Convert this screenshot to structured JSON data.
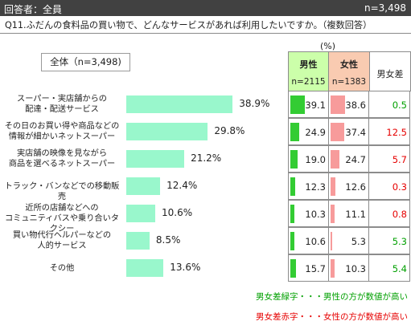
{
  "header": {
    "respondents_label": "回答者：全員",
    "n_total": "n=3,498"
  },
  "question": "Q11.ふだんの食料品の買い物で、どんなサービスがあれば利用したいですか。（複数回答）",
  "total_label": "全体（n=3,498)",
  "unit_label": "(%)",
  "columns": {
    "male": {
      "label": "男性",
      "n": "n=2115"
    },
    "female": {
      "label": "女性",
      "n": "n=1383"
    },
    "diff": {
      "label": "男女差"
    }
  },
  "legend": {
    "green": "男女差緑字・・・男性の方が数値が高い",
    "red": "男女差赤字・・・女性の方が数値が高い"
  },
  "colors": {
    "bar": "#99f7cc",
    "male_bar": "#33cc33",
    "female_bar": "#f79b9b",
    "diff_green": "#00a000",
    "diff_red": "#e60000"
  },
  "chart_data": {
    "type": "bar",
    "orientation": "horizontal",
    "categories": [
      [
        "スーパー・実店舗からの",
        "配達・配送サービス"
      ],
      [
        "その日のお買い得や商品などの",
        "情報が細かいネットスーパー"
      ],
      [
        "実店舗の映像を見ながら",
        "商品を選べるネットスーパー"
      ],
      [
        "トラック・バンなどでの移動販売"
      ],
      [
        "近所の店舗などへの",
        "コミュニティバスや乗り合いタクシー"
      ],
      [
        "買い物代行ヘルパーなどの",
        "人的サービス"
      ],
      [
        "その他"
      ]
    ],
    "total": {
      "values": [
        38.9,
        29.8,
        21.2,
        12.4,
        10.6,
        8.5,
        13.6
      ],
      "labels": [
        "38.9%",
        "29.8%",
        "21.2%",
        "12.4%",
        "10.6%",
        "8.5%",
        "13.6%"
      ]
    },
    "male": {
      "values": [
        39.1,
        24.9,
        19.0,
        12.3,
        10.3,
        10.6,
        15.7
      ],
      "labels": [
        "39.1",
        "24.9",
        "19.0",
        "12.3",
        "10.3",
        "10.6",
        "15.7"
      ]
    },
    "female": {
      "values": [
        38.6,
        37.4,
        24.7,
        12.6,
        11.1,
        5.3,
        10.3
      ],
      "labels": [
        "38.6",
        "37.4",
        "24.7",
        "12.6",
        "11.1",
        "5.3",
        "10.3"
      ]
    },
    "diff": {
      "labels": [
        "0.5",
        "12.5",
        "5.7",
        "0.3",
        "0.8",
        "5.3",
        "5.4"
      ],
      "colors": [
        "green",
        "red",
        "red",
        "red",
        "red",
        "green",
        "green"
      ]
    },
    "xlim": [
      0,
      100
    ]
  }
}
